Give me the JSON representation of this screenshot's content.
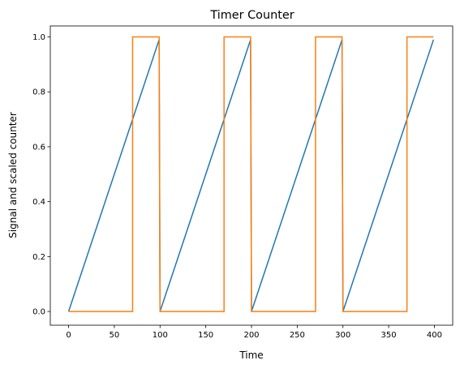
{
  "chart_data": {
    "type": "line",
    "title": "Timer Counter",
    "xlabel": "Time",
    "ylabel": "Signal and scaled counter",
    "xlim": [
      -20,
      420
    ],
    "ylim": [
      -0.05,
      1.04
    ],
    "xticks": [
      0,
      50,
      100,
      150,
      200,
      250,
      300,
      350,
      400
    ],
    "xtick_labels": [
      "0",
      "50",
      "100",
      "150",
      "200",
      "250",
      "300",
      "350",
      "400"
    ],
    "yticks": [
      0.0,
      0.2,
      0.4,
      0.6,
      0.8,
      1.0
    ],
    "ytick_labels": [
      "0.0",
      "0.2",
      "0.4",
      "0.6",
      "0.8",
      "1.0"
    ],
    "grid": false,
    "legend": false,
    "series": [
      {
        "color": "#1f77b4",
        "x": [
          0,
          99,
          100,
          199,
          200,
          299,
          300,
          399
        ],
        "y": [
          0.0,
          0.99,
          0.0,
          0.99,
          0.0,
          0.99,
          0.0,
          0.99
        ]
      },
      {
        "color": "#ff7f0e",
        "x": [
          0,
          70,
          70,
          99,
          100,
          170,
          170,
          199,
          200,
          270,
          270,
          299,
          300,
          370,
          370,
          399
        ],
        "y": [
          0,
          0,
          1,
          1,
          0,
          0,
          1,
          1,
          0,
          0,
          1,
          1,
          0,
          0,
          1,
          1
        ]
      }
    ]
  }
}
